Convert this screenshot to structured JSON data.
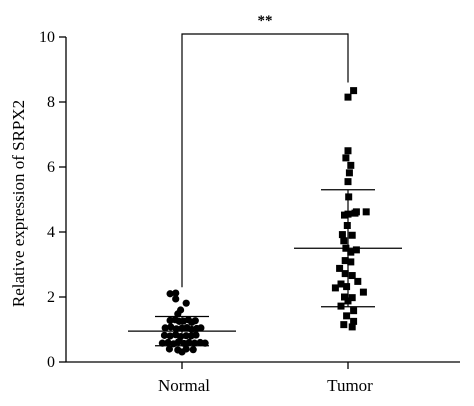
{
  "chart_data": {
    "type": "scatter",
    "ylabel": "Relative expression of SRPX2",
    "xlabel": "",
    "ylim": [
      0,
      10
    ],
    "yticks": [
      0,
      2,
      4,
      6,
      8,
      10
    ],
    "ytick_labels": [
      "0",
      "2",
      "4",
      "6",
      "8",
      "10"
    ],
    "categories": [
      "Normal",
      "Tumor"
    ],
    "significance": "**",
    "grid": false,
    "series": [
      {
        "category": "Normal",
        "marker": "circle",
        "mean": 0.95,
        "sd": 0.45,
        "points": [
          [
            -0.17,
            2.1
          ],
          [
            -0.09,
            2.12
          ],
          [
            -0.09,
            1.94
          ],
          [
            0.06,
            1.81
          ],
          [
            -0.02,
            1.6
          ],
          [
            -0.06,
            1.48
          ],
          [
            -0.17,
            1.28
          ],
          [
            -0.1,
            1.3
          ],
          [
            -0.04,
            1.25
          ],
          [
            0.02,
            1.26
          ],
          [
            0.09,
            1.3
          ],
          [
            0.14,
            1.22
          ],
          [
            0.19,
            1.27
          ],
          [
            -0.24,
            1.05
          ],
          [
            -0.16,
            1.08
          ],
          [
            -0.08,
            1.02
          ],
          [
            0.0,
            1.04
          ],
          [
            0.07,
            1.06
          ],
          [
            0.14,
            1.0
          ],
          [
            0.21,
            1.03
          ],
          [
            0.27,
            1.05
          ],
          [
            -0.25,
            0.82
          ],
          [
            -0.17,
            0.8
          ],
          [
            -0.09,
            0.84
          ],
          [
            -0.02,
            0.78
          ],
          [
            0.06,
            0.81
          ],
          [
            0.13,
            0.8
          ],
          [
            0.2,
            0.83
          ],
          [
            -0.28,
            0.58
          ],
          [
            -0.2,
            0.6
          ],
          [
            -0.12,
            0.56
          ],
          [
            -0.05,
            0.62
          ],
          [
            0.03,
            0.57
          ],
          [
            0.1,
            0.6
          ],
          [
            0.18,
            0.58
          ],
          [
            0.26,
            0.6
          ],
          [
            0.33,
            0.58
          ],
          [
            -0.18,
            0.4
          ],
          [
            -0.06,
            0.37
          ],
          [
            0.06,
            0.4
          ],
          [
            0.16,
            0.38
          ],
          [
            0.0,
            0.31
          ]
        ]
      },
      {
        "category": "Tumor",
        "marker": "square",
        "mean": 3.5,
        "sd": 1.8,
        "points": [
          [
            0.0,
            8.15
          ],
          [
            0.08,
            8.35
          ],
          [
            0.0,
            6.5
          ],
          [
            -0.03,
            6.28
          ],
          [
            0.04,
            6.05
          ],
          [
            0.02,
            5.82
          ],
          [
            0.0,
            5.55
          ],
          [
            0.01,
            5.08
          ],
          [
            0.12,
            4.62
          ],
          [
            0.0,
            4.55
          ],
          [
            -0.05,
            4.52
          ],
          [
            -0.01,
            4.2
          ],
          [
            -0.08,
            3.92
          ],
          [
            0.06,
            3.9
          ],
          [
            0.1,
            4.58
          ],
          [
            0.26,
            4.62
          ],
          [
            -0.06,
            3.73
          ],
          [
            -0.03,
            3.5
          ],
          [
            0.04,
            3.38
          ],
          [
            0.12,
            3.45
          ],
          [
            -0.04,
            3.12
          ],
          [
            0.04,
            3.08
          ],
          [
            -0.12,
            2.88
          ],
          [
            -0.04,
            2.72
          ],
          [
            0.06,
            2.66
          ],
          [
            0.14,
            2.48
          ],
          [
            -0.1,
            2.4
          ],
          [
            -0.02,
            2.32
          ],
          [
            -0.18,
            2.28
          ],
          [
            0.22,
            2.15
          ],
          [
            -0.05,
            2.0
          ],
          [
            0.06,
            1.98
          ],
          [
            0.0,
            1.88
          ],
          [
            -0.1,
            1.72
          ],
          [
            0.08,
            1.58
          ],
          [
            -0.02,
            1.42
          ],
          [
            0.08,
            1.25
          ],
          [
            -0.06,
            1.15
          ],
          [
            0.06,
            1.08
          ]
        ]
      }
    ]
  }
}
